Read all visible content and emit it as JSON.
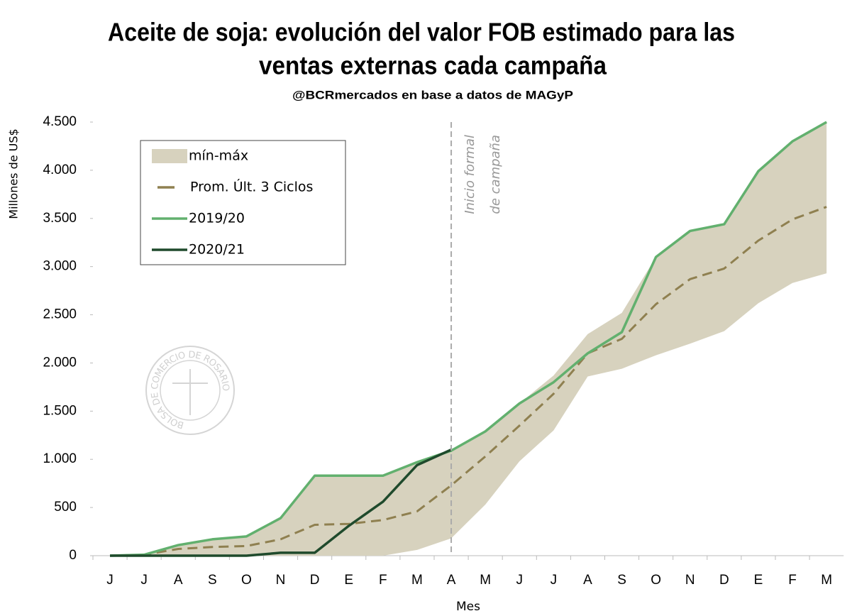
{
  "chart_data": {
    "type": "line",
    "title": [
      "Aceite de soja: evolución del valor FOB estimado para las",
      "ventas externas cada campaña"
    ],
    "subtitle": "@BCRmercados en base a datos de MAGyP",
    "x_label": "Mes",
    "y_label": "Millones de US$",
    "watermark": "BOLSA DE COMERCIO DE ROSARIO",
    "categories": [
      "J",
      "J",
      "A",
      "S",
      "O",
      "N",
      "D",
      "E",
      "F",
      "M",
      "A",
      "M",
      "J",
      "J",
      "A",
      "S",
      "O",
      "N",
      "D",
      "E",
      "F",
      "M"
    ],
    "ylim": [
      0,
      4500
    ],
    "yticks": [
      0,
      500,
      {
        "value": 1000,
        "label": "1.000"
      },
      {
        "value": 1500,
        "label": "1.500"
      },
      {
        "value": 2000,
        "label": "2.000"
      },
      {
        "value": 2500,
        "label": "2.500"
      },
      {
        "value": 3000,
        "label": "3.000"
      },
      {
        "value": 3500,
        "label": "3.500"
      },
      {
        "value": 4000,
        "label": "4.000"
      },
      {
        "value": 4500,
        "label": "4.500"
      }
    ],
    "legend": "upper left",
    "annotation": {
      "lines": [
        "Inicio formal",
        "de campaña"
      ],
      "category": 10
    },
    "series": [
      {
        "name": "mín-máx",
        "kind": "band",
        "color": "#d7d2be",
        "lower": [
          0,
          0,
          0,
          0,
          0,
          0,
          0,
          0,
          0,
          60,
          180,
          530,
          980,
          1300,
          1860,
          1940,
          2080,
          2200,
          2330,
          2620,
          2830,
          2930
        ],
        "upper": [
          0,
          10,
          110,
          170,
          200,
          390,
          830,
          830,
          830,
          970,
          1090,
          1290,
          1580,
          1870,
          2300,
          2520,
          3100,
          3370,
          3440,
          3990,
          4300,
          4500
        ]
      },
      {
        "name": "Prom. Últ. 3 Ciclos",
        "kind": "dashed",
        "color": "#8f8050",
        "values": [
          0,
          10,
          70,
          90,
          100,
          170,
          320,
          330,
          370,
          460,
          730,
          1030,
          1350,
          1680,
          2100,
          2250,
          2610,
          2870,
          2980,
          3270,
          3490,
          3620
        ]
      },
      {
        "name": "2019/20",
        "kind": "line",
        "color": "#62b06e",
        "values": [
          0,
          10,
          110,
          170,
          200,
          390,
          830,
          830,
          830,
          970,
          1090,
          1290,
          1580,
          1800,
          2100,
          2320,
          3100,
          3370,
          3440,
          3990,
          4300,
          4500
        ]
      },
      {
        "name": "2020/21",
        "kind": "line",
        "color": "#1f4a2c",
        "values": [
          0,
          0,
          0,
          0,
          0,
          30,
          30,
          310,
          560,
          940,
          1100,
          null,
          null,
          null,
          null,
          null,
          null,
          null,
          null,
          null,
          null,
          null
        ]
      }
    ]
  }
}
